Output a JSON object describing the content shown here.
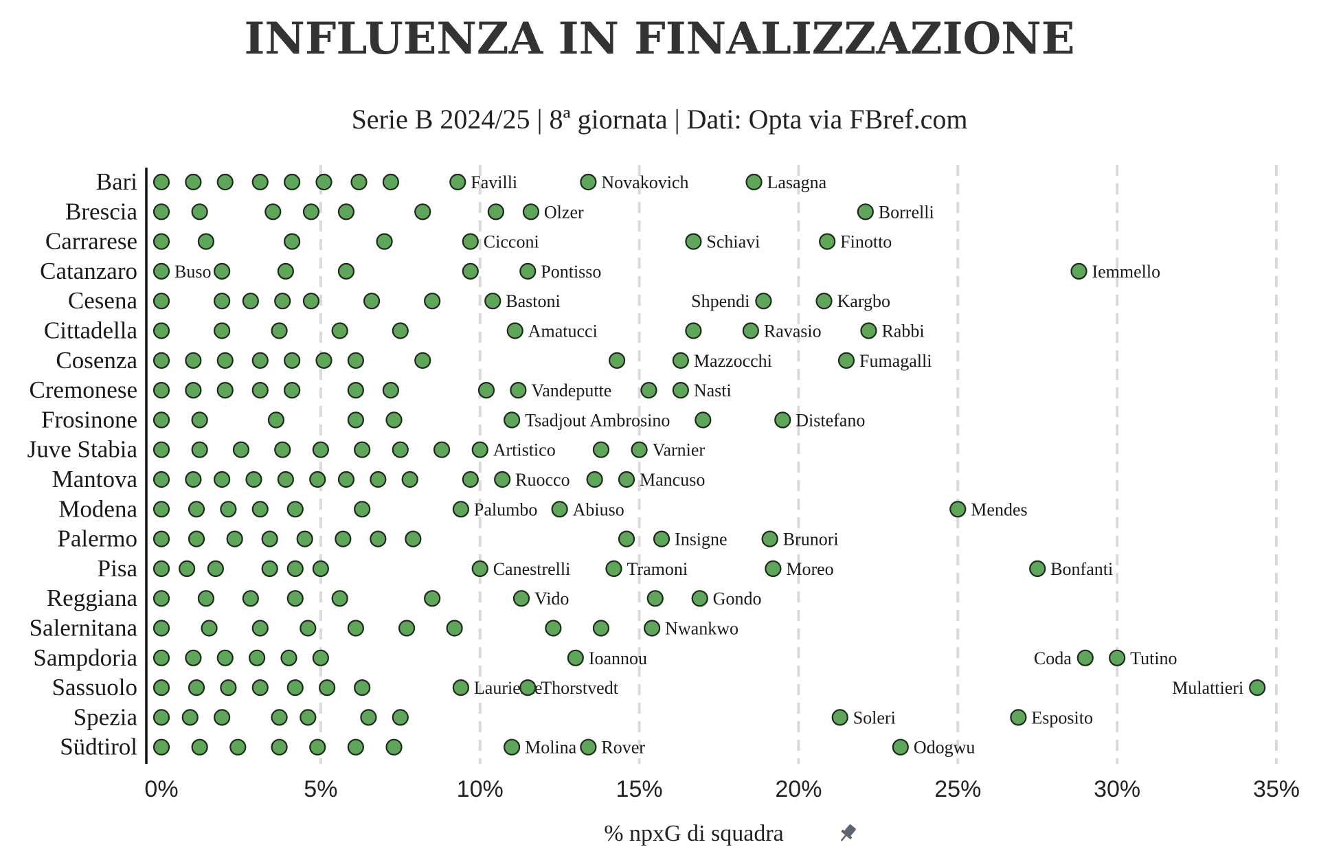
{
  "chart_data": {
    "type": "scatter",
    "title": "INFLUENZA IN FINALIZZAZIONE",
    "subtitle": "Serie B 2024/25 | 8ª giornata | Dati: Opta via FBref.com",
    "xlabel": "% npxG di squadra",
    "xlim": [
      0,
      35
    ],
    "xticks": [
      0,
      5,
      10,
      15,
      20,
      25,
      30,
      35
    ],
    "xtick_labels": [
      "0%",
      "5%",
      "10%",
      "15%",
      "20%",
      "25%",
      "30%",
      "35%"
    ],
    "grid": true,
    "dot_color": "#5fa55a",
    "teams": [
      {
        "name": "Bari",
        "points": [
          {
            "x": 0
          },
          {
            "x": 1
          },
          {
            "x": 2
          },
          {
            "x": 3.1
          },
          {
            "x": 4.1
          },
          {
            "x": 5.1
          },
          {
            "x": 6.2
          },
          {
            "x": 7.2
          },
          {
            "x": 9.3,
            "label": "Favilli"
          },
          {
            "x": 13.4,
            "label": "Novakovich"
          },
          {
            "x": 18.6,
            "label": "Lasagna"
          }
        ]
      },
      {
        "name": "Brescia",
        "points": [
          {
            "x": 0
          },
          {
            "x": 1.2
          },
          {
            "x": 3.5
          },
          {
            "x": 4.7
          },
          {
            "x": 5.8
          },
          {
            "x": 8.2
          },
          {
            "x": 10.5
          },
          {
            "x": 11.6,
            "label": "Olzer"
          },
          {
            "x": 22.1,
            "label": "Borrelli"
          }
        ]
      },
      {
        "name": "Carrarese",
        "points": [
          {
            "x": 0
          },
          {
            "x": 1.4
          },
          {
            "x": 4.1
          },
          {
            "x": 7
          },
          {
            "x": 9.7,
            "label": "Cicconi"
          },
          {
            "x": 16.7,
            "label": "Schiavi"
          },
          {
            "x": 20.9,
            "label": "Finotto"
          }
        ]
      },
      {
        "name": "Catanzaro",
        "points": [
          {
            "x": 0,
            "label": "Buso"
          },
          {
            "x": 1.9
          },
          {
            "x": 3.9
          },
          {
            "x": 5.8
          },
          {
            "x": 9.7
          },
          {
            "x": 11.5,
            "label": "Pontisso"
          },
          {
            "x": 28.8,
            "label": "Iemmello"
          }
        ]
      },
      {
        "name": "Cesena",
        "points": [
          {
            "x": 0
          },
          {
            "x": 1.9
          },
          {
            "x": 2.8
          },
          {
            "x": 3.8
          },
          {
            "x": 4.7
          },
          {
            "x": 6.6
          },
          {
            "x": 8.5
          },
          {
            "x": 10.4,
            "label": "Bastoni"
          },
          {
            "x": 18.9,
            "label": "Shpendi",
            "label_side": "left"
          },
          {
            "x": 20.8,
            "label": "Kargbo"
          }
        ]
      },
      {
        "name": "Cittadella",
        "points": [
          {
            "x": 0
          },
          {
            "x": 1.9
          },
          {
            "x": 3.7
          },
          {
            "x": 5.6
          },
          {
            "x": 7.5
          },
          {
            "x": 11.1,
            "label": "Amatucci"
          },
          {
            "x": 16.7
          },
          {
            "x": 18.5,
            "label": "Ravasio"
          },
          {
            "x": 22.2,
            "label": "Rabbi"
          }
        ]
      },
      {
        "name": "Cosenza",
        "points": [
          {
            "x": 0
          },
          {
            "x": 1
          },
          {
            "x": 2
          },
          {
            "x": 3.1
          },
          {
            "x": 4.1
          },
          {
            "x": 5.1
          },
          {
            "x": 6.1
          },
          {
            "x": 8.2
          },
          {
            "x": 14.3
          },
          {
            "x": 16.3,
            "label": "Mazzocchi"
          },
          {
            "x": 21.5,
            "label": "Fumagalli"
          }
        ]
      },
      {
        "name": "Cremonese",
        "points": [
          {
            "x": 0
          },
          {
            "x": 1
          },
          {
            "x": 2
          },
          {
            "x": 3.1
          },
          {
            "x": 4.1
          },
          {
            "x": 6.1
          },
          {
            "x": 7.2
          },
          {
            "x": 10.2
          },
          {
            "x": 11.2,
            "label": "Vandeputte"
          },
          {
            "x": 15.3
          },
          {
            "x": 16.3,
            "label": "Nasti"
          }
        ]
      },
      {
        "name": "Frosinone",
        "points": [
          {
            "x": 0
          },
          {
            "x": 1.2
          },
          {
            "x": 3.6
          },
          {
            "x": 6.1
          },
          {
            "x": 7.3
          },
          {
            "x": 11,
            "label": "Tsadjout Ambrosino"
          },
          {
            "x": 17
          },
          {
            "x": 19.5,
            "label": "Distefano"
          }
        ]
      },
      {
        "name": "Juve Stabia",
        "points": [
          {
            "x": 0
          },
          {
            "x": 1.2
          },
          {
            "x": 2.5
          },
          {
            "x": 3.8
          },
          {
            "x": 5
          },
          {
            "x": 6.3
          },
          {
            "x": 7.5
          },
          {
            "x": 8.8
          },
          {
            "x": 10,
            "label": "Artistico"
          },
          {
            "x": 13.8
          },
          {
            "x": 15,
            "label": "Varnier"
          }
        ]
      },
      {
        "name": "Mantova",
        "points": [
          {
            "x": 0
          },
          {
            "x": 1
          },
          {
            "x": 1.9
          },
          {
            "x": 2.9
          },
          {
            "x": 3.9
          },
          {
            "x": 4.9
          },
          {
            "x": 5.8
          },
          {
            "x": 6.8
          },
          {
            "x": 7.8
          },
          {
            "x": 9.7
          },
          {
            "x": 10.7,
            "label": "Ruocco"
          },
          {
            "x": 13.6
          },
          {
            "x": 14.6,
            "label": "Mancuso"
          }
        ]
      },
      {
        "name": "Modena",
        "points": [
          {
            "x": 0
          },
          {
            "x": 1.1
          },
          {
            "x": 2.1
          },
          {
            "x": 3.1
          },
          {
            "x": 4.2
          },
          {
            "x": 6.3
          },
          {
            "x": 9.4,
            "label": "Palumbo"
          },
          {
            "x": 12.5,
            "label": "Abiuso"
          },
          {
            "x": 25,
            "label": "Mendes"
          }
        ]
      },
      {
        "name": "Palermo",
        "points": [
          {
            "x": 0
          },
          {
            "x": 1.1
          },
          {
            "x": 2.3
          },
          {
            "x": 3.4
          },
          {
            "x": 4.5
          },
          {
            "x": 5.7
          },
          {
            "x": 6.8
          },
          {
            "x": 7.9
          },
          {
            "x": 14.6
          },
          {
            "x": 15.7,
            "label": "Insigne"
          },
          {
            "x": 19.1,
            "label": "Brunori"
          }
        ]
      },
      {
        "name": "Pisa",
        "points": [
          {
            "x": 0
          },
          {
            "x": 0.8
          },
          {
            "x": 1.7
          },
          {
            "x": 3.4
          },
          {
            "x": 4.2
          },
          {
            "x": 5
          },
          {
            "x": 10,
            "label": "Canestrelli"
          },
          {
            "x": 14.2,
            "label": "Tramoni"
          },
          {
            "x": 19.2,
            "label": "Moreo"
          },
          {
            "x": 27.5,
            "label": "Bonfanti"
          }
        ]
      },
      {
        "name": "Reggiana",
        "points": [
          {
            "x": 0
          },
          {
            "x": 1.4
          },
          {
            "x": 2.8
          },
          {
            "x": 4.2
          },
          {
            "x": 5.6
          },
          {
            "x": 8.5
          },
          {
            "x": 11.3,
            "label": "Vido"
          },
          {
            "x": 15.5
          },
          {
            "x": 16.9,
            "label": "Gondo"
          }
        ]
      },
      {
        "name": "Salernitana",
        "points": [
          {
            "x": 0
          },
          {
            "x": 1.5
          },
          {
            "x": 3.1
          },
          {
            "x": 4.6
          },
          {
            "x": 6.1
          },
          {
            "x": 7.7
          },
          {
            "x": 9.2
          },
          {
            "x": 12.3
          },
          {
            "x": 13.8
          },
          {
            "x": 15.4,
            "label": "Nwankwo"
          }
        ]
      },
      {
        "name": "Sampdoria",
        "points": [
          {
            "x": 0
          },
          {
            "x": 1
          },
          {
            "x": 2
          },
          {
            "x": 3
          },
          {
            "x": 4
          },
          {
            "x": 5
          },
          {
            "x": 13,
            "label": "Ioannou"
          },
          {
            "x": 29,
            "label": "Coda",
            "label_side": "left"
          },
          {
            "x": 30,
            "label": "Tutino"
          }
        ]
      },
      {
        "name": "Sassuolo",
        "points": [
          {
            "x": 0
          },
          {
            "x": 1.1
          },
          {
            "x": 2.1
          },
          {
            "x": 3.1
          },
          {
            "x": 4.2
          },
          {
            "x": 5.2
          },
          {
            "x": 6.3
          },
          {
            "x": 9.4,
            "label": "Lauriente"
          },
          {
            "x": 11.5,
            "label": "Thorstvedt"
          },
          {
            "x": 34.4,
            "label": "Mulattieri",
            "label_side": "left"
          }
        ]
      },
      {
        "name": "Spezia",
        "points": [
          {
            "x": 0
          },
          {
            "x": 0.9
          },
          {
            "x": 1.9
          },
          {
            "x": 3.7
          },
          {
            "x": 4.6
          },
          {
            "x": 6.5
          },
          {
            "x": 7.5
          },
          {
            "x": 21.3,
            "label": "Soleri"
          },
          {
            "x": 26.9,
            "label": "Esposito"
          }
        ]
      },
      {
        "name": "Südtirol",
        "points": [
          {
            "x": 0
          },
          {
            "x": 1.2
          },
          {
            "x": 2.4
          },
          {
            "x": 3.7
          },
          {
            "x": 4.9
          },
          {
            "x": 6.1
          },
          {
            "x": 7.3
          },
          {
            "x": 11,
            "label": "Molina"
          },
          {
            "x": 13.4,
            "label": "Rover"
          },
          {
            "x": 23.2,
            "label": "Odogwu"
          }
        ]
      }
    ]
  }
}
